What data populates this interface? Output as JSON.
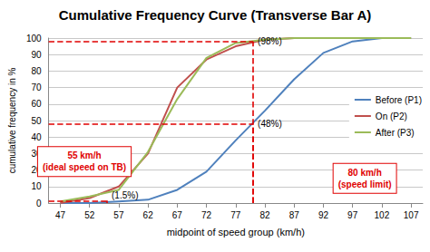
{
  "chart_data": {
    "type": "line",
    "title": "Cumulative Frequency Curve (Transverse Bar A)",
    "x_label": "midpoint of speed group (km/h)",
    "y_label": "cumulative frequency in %",
    "x": [
      47,
      52,
      57,
      62,
      67,
      72,
      77,
      82,
      87,
      92,
      97,
      102,
      107
    ],
    "series": [
      {
        "name": "Before (P1)",
        "color": "#4f81bd",
        "values": [
          0,
          0,
          1,
          2,
          8,
          19,
          38,
          56,
          75,
          91,
          98,
          100,
          100
        ]
      },
      {
        "name": "On (P2)",
        "color": "#c0504d",
        "values": [
          0,
          3,
          10,
          30,
          70,
          87,
          95,
          99,
          100,
          100,
          100,
          100,
          100
        ]
      },
      {
        "name": "After (P3)",
        "color": "#9bbb59",
        "values": [
          1,
          4,
          8,
          31,
          63,
          88,
          97,
          99,
          100,
          100,
          100,
          100,
          100
        ]
      }
    ],
    "xlim": [
      45,
      109
    ],
    "xticks": [
      47,
      52,
      57,
      62,
      67,
      72,
      77,
      82,
      87,
      92,
      97,
      102,
      107
    ],
    "ylim": [
      0,
      100
    ],
    "yticks": [
      0,
      10,
      20,
      30,
      40,
      50,
      60,
      70,
      80,
      90,
      100
    ],
    "grid": true,
    "legend": "right",
    "reference_lines": [
      {
        "x": 55,
        "y": 1.5,
        "y_label": "(1.5%)",
        "text": [
          "55 km/h",
          "(ideal speed on TB)"
        ],
        "color": "#e00000"
      },
      {
        "x": 80,
        "y": 98,
        "y_label": "(98%)",
        "color": "#e00000"
      },
      {
        "x": 80,
        "y": 48,
        "y_label": "(48%)",
        "text": [
          "80 km/h",
          "(speed limit)"
        ],
        "color": "#e00000"
      }
    ]
  }
}
